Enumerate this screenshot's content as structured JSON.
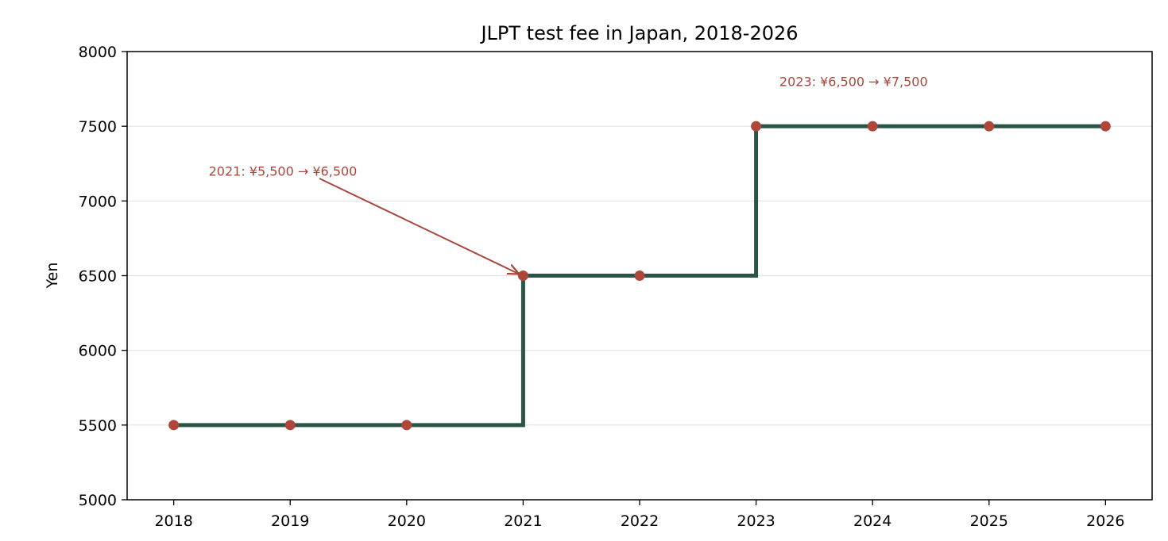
{
  "chart_data": {
    "type": "line",
    "subtype": "step-post",
    "title": "JLPT test fee in Japan, 2018-2026",
    "xlabel": "",
    "ylabel": "Yen",
    "x": [
      2018,
      2019,
      2020,
      2021,
      2022,
      2023,
      2024,
      2025,
      2026
    ],
    "series": [
      {
        "values": [
          5500,
          5500,
          5500,
          6500,
          6500,
          7500,
          7500,
          7500,
          7500
        ]
      }
    ],
    "xlim": [
      2017.6,
      2026.4
    ],
    "ylim": [
      5000,
      8000
    ],
    "xticks": [
      "2018",
      "2019",
      "2020",
      "2021",
      "2022",
      "2023",
      "2024",
      "2025",
      "2026"
    ],
    "yticks": [
      "5000",
      "5500",
      "6000",
      "6500",
      "7000",
      "7500",
      "8000"
    ],
    "grid": "horizontal",
    "legend": "none",
    "annotations": [
      {
        "text": "2021: ¥5,500 → ¥6,500",
        "x": 2021,
        "y": 6500,
        "text_x": 2018.3,
        "text_y": 7200,
        "arrow": true
      },
      {
        "text": "2023: ¥6,500 → ¥7,500",
        "x": 2023,
        "y": 7500,
        "text_x": 2023.2,
        "text_y": 7800,
        "arrow": false
      }
    ],
    "colors": {
      "line": "#2a5446",
      "marker": "#b0463a",
      "annotation": "#a8463c",
      "grid": "#e3e3e3"
    }
  }
}
